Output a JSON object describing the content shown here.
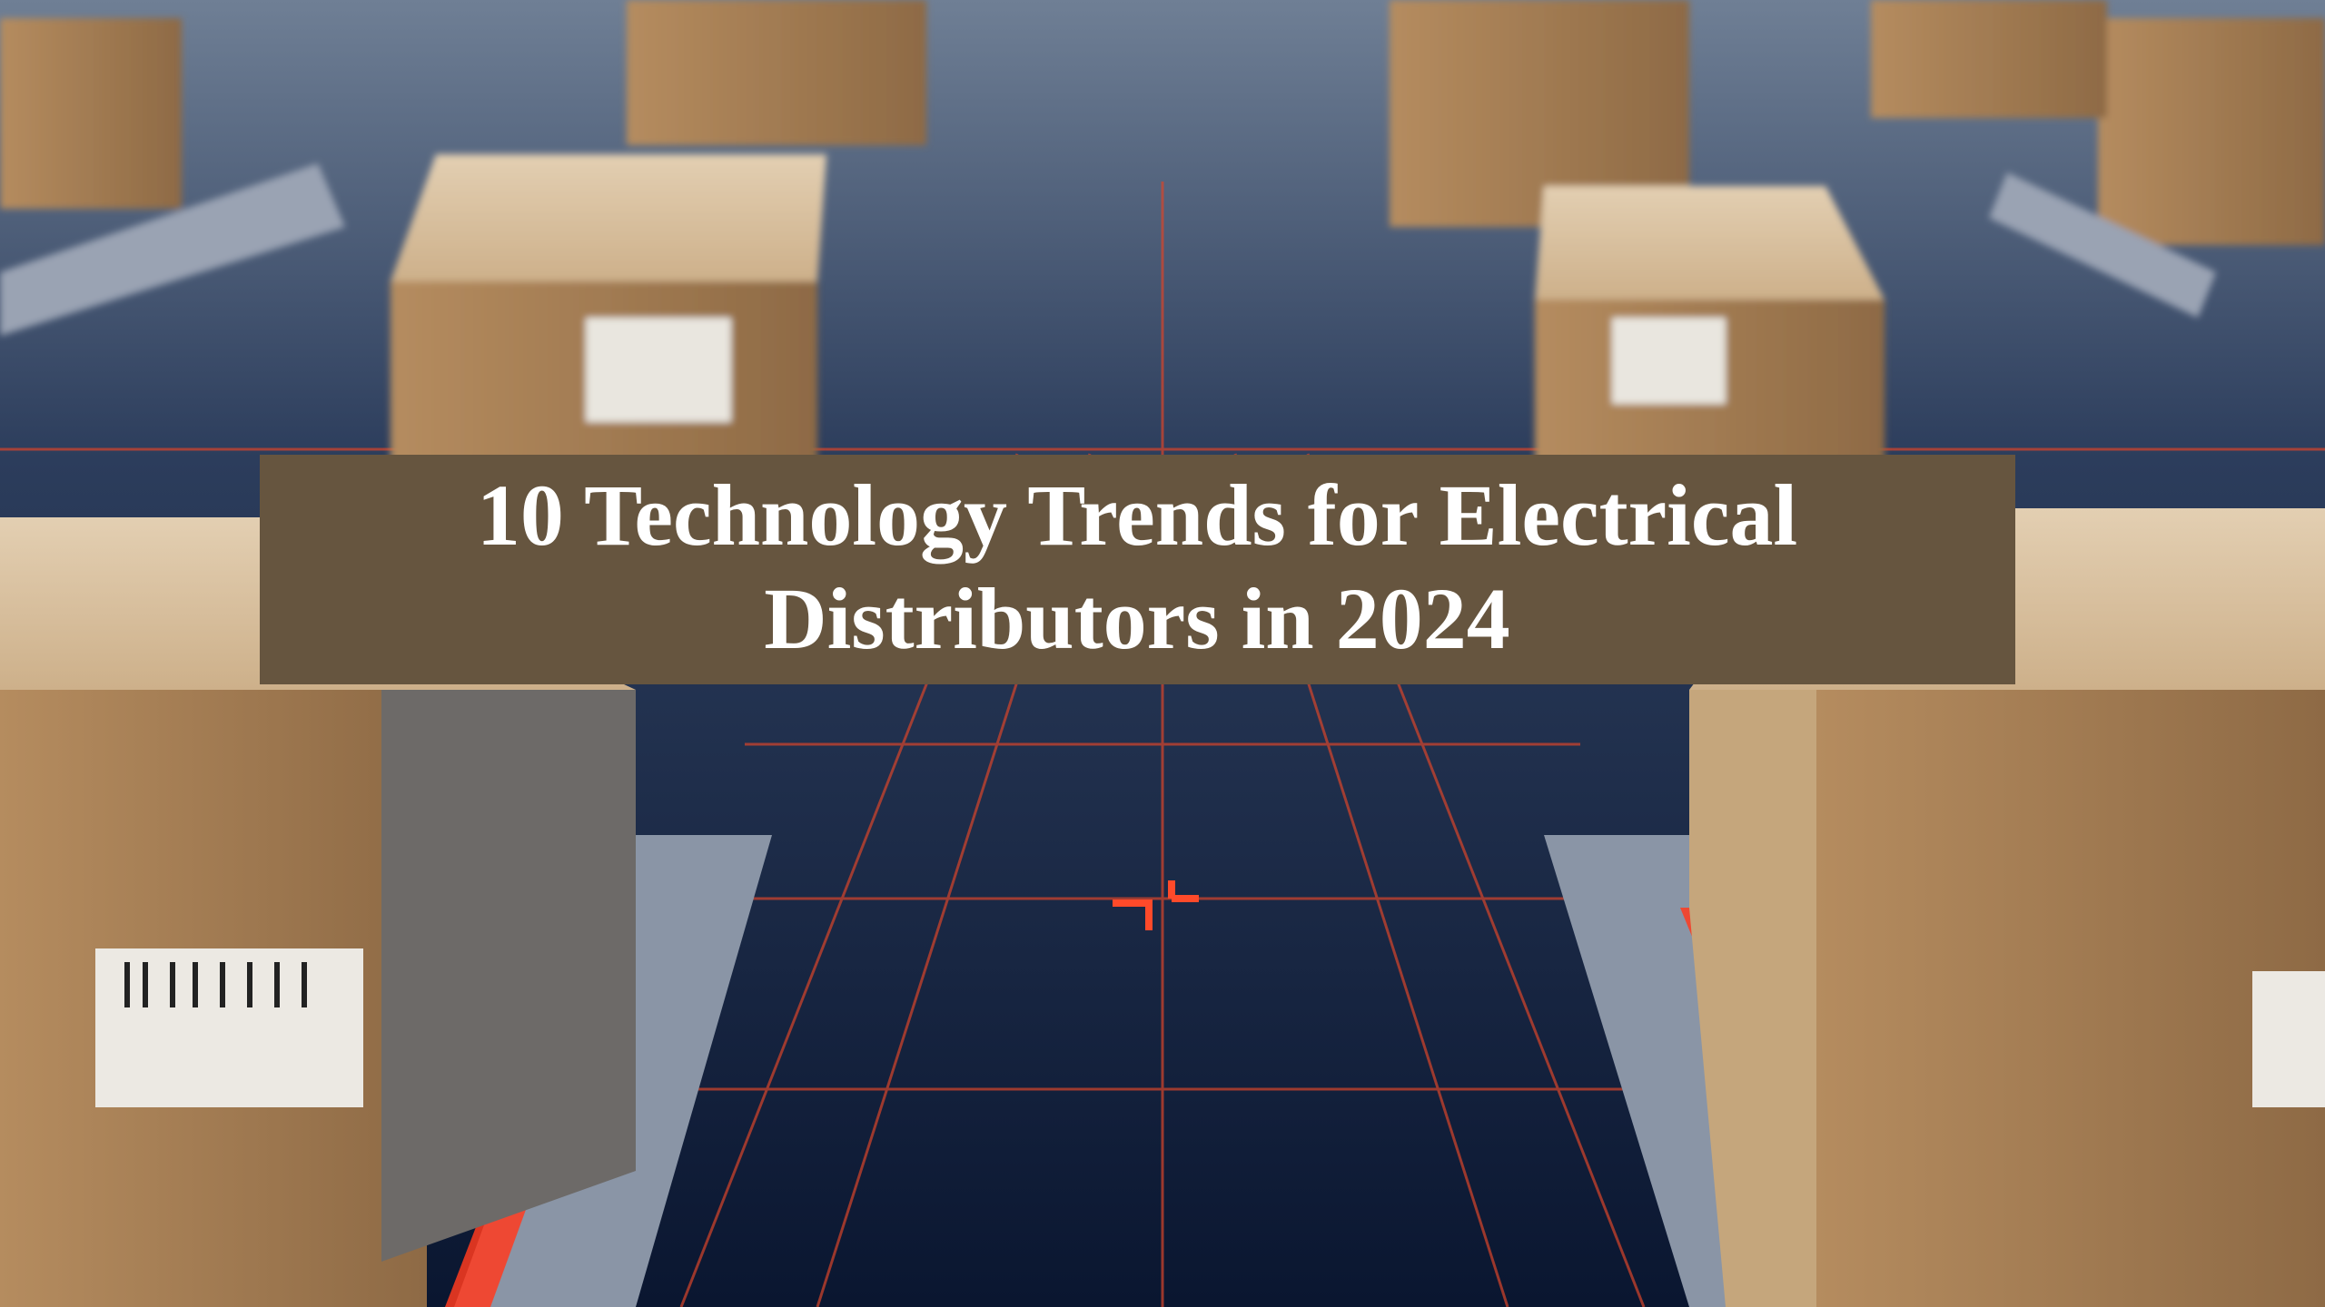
{
  "title": {
    "lines": [
      "10 Technology Trends for Electrical",
      "Distributors in 2024"
    ]
  }
}
